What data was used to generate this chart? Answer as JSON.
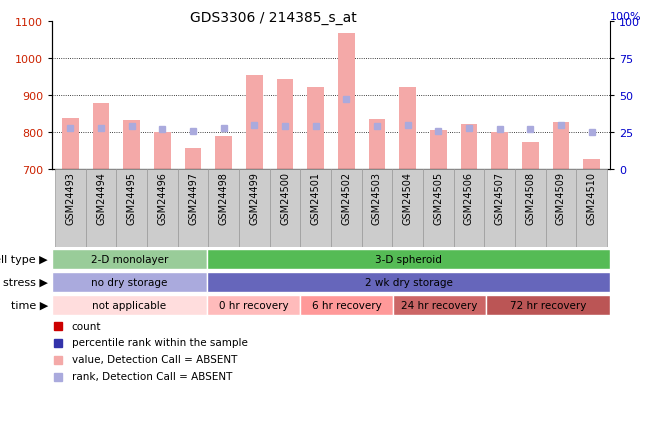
{
  "title": "GDS3306 / 214385_s_at",
  "samples": [
    "GSM24493",
    "GSM24494",
    "GSM24495",
    "GSM24496",
    "GSM24497",
    "GSM24498",
    "GSM24499",
    "GSM24500",
    "GSM24501",
    "GSM24502",
    "GSM24503",
    "GSM24504",
    "GSM24505",
    "GSM24506",
    "GSM24507",
    "GSM24508",
    "GSM24509",
    "GSM24510"
  ],
  "bar_values": [
    838,
    878,
    833,
    801,
    757,
    790,
    955,
    942,
    922,
    1068,
    835,
    922,
    805,
    822,
    800,
    773,
    828,
    727
  ],
  "rank_values": [
    28,
    28,
    29,
    27,
    26,
    28,
    30,
    29,
    29,
    47,
    29,
    30,
    26,
    28,
    27,
    27,
    30,
    25
  ],
  "ylim_left": [
    700,
    1100
  ],
  "ylim_right": [
    0,
    100
  ],
  "yticks_left": [
    700,
    800,
    900,
    1000,
    1100
  ],
  "yticks_right": [
    0,
    25,
    50,
    75,
    100
  ],
  "bar_color": "#f4a9a8",
  "rank_color": "#aaaadd",
  "cell_type_spans": [
    [
      0,
      5,
      "2-D monolayer",
      "#99cc99"
    ],
    [
      5,
      18,
      "3-D spheroid",
      "#55bb55"
    ]
  ],
  "stress_spans": [
    [
      0,
      5,
      "no dry storage",
      "#aaaadd"
    ],
    [
      5,
      18,
      "2 wk dry storage",
      "#6666bb"
    ]
  ],
  "time_spans": [
    [
      0,
      5,
      "not applicable",
      "#ffdddd"
    ],
    [
      5,
      8,
      "0 hr recovery",
      "#ffbbbb"
    ],
    [
      8,
      11,
      "6 hr recovery",
      "#ff9999"
    ],
    [
      11,
      14,
      "24 hr recovery",
      "#cc6666"
    ],
    [
      14,
      18,
      "72 hr recovery",
      "#bb5555"
    ]
  ],
  "legend_items_col1": [
    {
      "color": "#cc0000",
      "label": "count"
    },
    {
      "color": "#3333aa",
      "label": "percentile rank within the sample"
    },
    {
      "color": "#f4a9a8",
      "label": "value, Detection Call = ABSENT"
    },
    {
      "color": "#aaaadd",
      "label": "rank, Detection Call = ABSENT"
    }
  ],
  "bg_color": "#ffffff",
  "label_color_left": "#cc2200",
  "label_color_right": "#0000cc",
  "grid_yvals": [
    800,
    900,
    1000
  ],
  "row_label_fontsize": 8,
  "tick_fontsize": 8,
  "sample_fontsize": 7,
  "title_fontsize": 10
}
